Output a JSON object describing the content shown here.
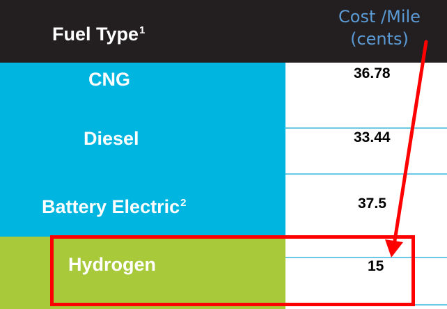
{
  "header": {
    "fuel_label": "Fuel Type",
    "fuel_footnote": "1",
    "cost_line1": "Cost /Mile",
    "cost_line2": "(cents)"
  },
  "rows": [
    {
      "fuel": "CNG",
      "footnote": "",
      "cost": "36.78"
    },
    {
      "fuel": "Diesel",
      "footnote": "",
      "cost": "33.44"
    },
    {
      "fuel": "Battery Electric",
      "footnote": "2",
      "cost": "37.5"
    },
    {
      "fuel": "Hydrogen",
      "footnote": "",
      "cost": "15"
    }
  ],
  "colors": {
    "header_bg": "#231f20",
    "fuel_bg": "#00b5e0",
    "hydrogen_bg": "#a7c93a",
    "cost_header": "#5b9bd5",
    "annotation": "#ff0000"
  }
}
